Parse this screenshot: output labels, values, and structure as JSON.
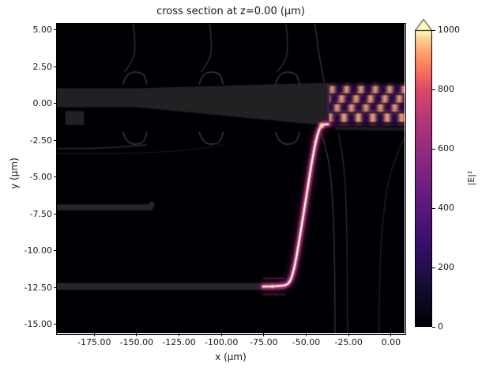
{
  "chart_data": {
    "type": "heatmap",
    "title": "cross section at z=0.00 (μm)",
    "xlabel": "x (μm)",
    "ylabel": "y (μm)",
    "bg_color": "#000004",
    "xlim": [
      -197,
      8
    ],
    "ylim": [
      -15.6,
      5.43
    ],
    "grid": false,
    "x_ticks": {
      "values": [
        -175,
        -150,
        -125,
        -100,
        -75,
        -50,
        -25,
        0
      ],
      "labels": [
        "-175.00",
        "-150.00",
        "-125.00",
        "-100.00",
        "-75.00",
        "-50.00",
        "-25.00",
        "0.00"
      ]
    },
    "y_ticks": {
      "values": [
        5,
        2.5,
        0,
        -2.5,
        -5,
        -7.5,
        -10,
        -12.5,
        -15
      ],
      "labels": [
        "5.00",
        "2.50",
        "0.00",
        "-2.50",
        "-5.00",
        "-7.50",
        "-10.00",
        "-12.50",
        "-15.00"
      ]
    },
    "colorbar": {
      "label": "|E|²",
      "vmin": 0,
      "vmax": 1000,
      "ticks": [
        0,
        200,
        400,
        600,
        800,
        1000
      ],
      "tick_labels": [
        "0",
        "200",
        "400",
        "600",
        "800",
        "1000"
      ],
      "extend": "max",
      "colormap": "magma",
      "stops": [
        {
          "t": 0.0,
          "c": "#000004"
        },
        {
          "t": 0.14,
          "c": "#140e36"
        },
        {
          "t": 0.29,
          "c": "#3b0f70"
        },
        {
          "t": 0.43,
          "c": "#641a80"
        },
        {
          "t": 0.57,
          "c": "#8c2981"
        },
        {
          "t": 0.71,
          "c": "#b73779"
        },
        {
          "t": 0.8,
          "c": "#de4968"
        },
        {
          "t": 0.86,
          "c": "#f7705c"
        },
        {
          "t": 0.92,
          "c": "#fe9f6d"
        },
        {
          "t": 0.97,
          "c": "#fecf92"
        },
        {
          "t": 1.0,
          "c": "#fcfdbf"
        }
      ]
    },
    "geometry_overlay": {
      "shapes": [
        {
          "kind": "polygon",
          "fill": "rgba(255,255,255,0.13)",
          "pts": [
            [
              -197,
              1.05
            ],
            [
              -150,
              1.05
            ],
            [
              -46,
              1.4
            ],
            [
              -36,
              1.4
            ],
            [
              -36,
              -1.4
            ],
            [
              -46,
              -1.4
            ],
            [
              -150,
              -0.25
            ],
            [
              -197,
              -0.25
            ]
          ]
        },
        {
          "kind": "polygon",
          "fill": "rgba(255,255,255,0.13)",
          "pts": [
            [
              -192,
              -0.5
            ],
            [
              -181,
              -0.5
            ],
            [
              -181,
              -1.45
            ],
            [
              -192,
              -1.45
            ]
          ]
        },
        {
          "kind": "polygon",
          "fill": "rgba(255,255,255,0.15)",
          "pts": [
            [
              -197,
              -6.85
            ],
            [
              -143,
              -6.85
            ],
            [
              -141,
              -6.6
            ],
            [
              -139,
              -6.85
            ],
            [
              -141,
              -7.25
            ],
            [
              -197,
              -7.25
            ]
          ]
        },
        {
          "kind": "polygon",
          "fill": "rgba(255,255,255,0.15)",
          "pts": [
            [
              -197,
              -12.18
            ],
            [
              -62,
              -12.18
            ],
            [
              -62,
              -12.65
            ],
            [
              -197,
              -12.65
            ]
          ]
        },
        {
          "kind": "polygon",
          "fill": "rgba(255,255,255,0.10)",
          "pts": [
            [
              -33,
              -1.55
            ],
            [
              8,
              -1.6
            ],
            [
              8,
              -1.85
            ],
            [
              -33,
              -1.8
            ]
          ]
        },
        {
          "kind": "path",
          "stroke": "rgba(255,255,255,0.22)",
          "w": 1.6,
          "pts": [
            [
              -158,
              1.35
            ],
            [
              -156,
              2.15
            ],
            [
              -146,
              2.15
            ],
            [
              -144,
              1.35
            ]
          ]
        },
        {
          "kind": "path",
          "stroke": "rgba(255,255,255,0.22)",
          "w": 1.6,
          "pts": [
            [
              -113,
              1.35
            ],
            [
              -111,
              2.15
            ],
            [
              -101,
              2.15
            ],
            [
              -99,
              1.35
            ]
          ]
        },
        {
          "kind": "path",
          "stroke": "rgba(255,255,255,0.22)",
          "w": 1.6,
          "pts": [
            [
              -68,
              1.35
            ],
            [
              -66,
              2.15
            ],
            [
              -56,
              2.15
            ],
            [
              -54,
              1.35
            ]
          ]
        },
        {
          "kind": "path",
          "stroke": "rgba(255,255,255,0.22)",
          "w": 1.6,
          "pts": [
            [
              -158,
              -1.95
            ],
            [
              -156,
              -2.75
            ],
            [
              -146,
              -2.75
            ],
            [
              -144,
              -1.95
            ]
          ]
        },
        {
          "kind": "path",
          "stroke": "rgba(255,255,255,0.22)",
          "w": 1.6,
          "pts": [
            [
              -113,
              -1.95
            ],
            [
              -111,
              -2.75
            ],
            [
              -101,
              -2.75
            ],
            [
              -99,
              -1.95
            ]
          ]
        },
        {
          "kind": "path",
          "stroke": "rgba(255,255,255,0.22)",
          "w": 1.6,
          "pts": [
            [
              -68,
              -1.95
            ],
            [
              -66,
              -2.75
            ],
            [
              -56,
              -2.75
            ],
            [
              -54,
              -1.95
            ]
          ]
        },
        {
          "kind": "path",
          "stroke": "rgba(255,255,255,0.20)",
          "w": 1.4,
          "pts": [
            [
              -152,
              5.5
            ],
            [
              -150,
              3.6
            ],
            [
              -154,
              2.6
            ],
            [
              -157,
              2.2
            ]
          ]
        },
        {
          "kind": "path",
          "stroke": "rgba(255,255,255,0.20)",
          "w": 1.4,
          "pts": [
            [
              -107,
              5.5
            ],
            [
              -105,
              3.6
            ],
            [
              -109,
              2.6
            ],
            [
              -112,
              2.2
            ]
          ]
        },
        {
          "kind": "path",
          "stroke": "rgba(255,255,255,0.20)",
          "w": 1.4,
          "pts": [
            [
              -62,
              5.5
            ],
            [
              -60,
              3.6
            ],
            [
              -64,
              2.6
            ],
            [
              -67,
              2.2
            ]
          ]
        },
        {
          "kind": "path",
          "stroke": "rgba(255,255,255,0.20)",
          "w": 1.4,
          "pts": [
            [
              -45,
              5.5
            ],
            [
              -43,
              3.8
            ],
            [
              -41,
              2.4
            ],
            [
              -39.5,
              1.5
            ]
          ]
        },
        {
          "kind": "path",
          "stroke": "rgba(255,255,255,0.18)",
          "w": 1.4,
          "pts": [
            [
              -144,
              -2.8
            ],
            [
              -168,
              -3.05
            ],
            [
              -197,
              -3.05
            ]
          ]
        },
        {
          "kind": "path",
          "stroke": "rgba(255,255,255,0.10)",
          "w": 1.2,
          "pts": [
            [
              -99,
              -2.8
            ],
            [
              -125,
              -3.35
            ],
            [
              -197,
              -3.4
            ]
          ]
        },
        {
          "kind": "path",
          "stroke": "rgba(255,255,255,0.20)",
          "w": 1.4,
          "pts": [
            [
              -41,
              -2.0
            ],
            [
              -36.5,
              -3.6
            ],
            [
              -34,
              -7
            ],
            [
              -33.2,
              -11
            ],
            [
              -33,
              -15.7
            ]
          ]
        },
        {
          "kind": "path",
          "stroke": "rgba(255,255,255,0.16)",
          "w": 1.4,
          "pts": [
            [
              -31,
              -2.0
            ],
            [
              -28,
              -3.6
            ],
            [
              -26.3,
              -7
            ],
            [
              -25.8,
              -11
            ],
            [
              -25.6,
              -15.7
            ]
          ]
        },
        {
          "kind": "path",
          "stroke": "rgba(255,255,255,0.12)",
          "w": 1.4,
          "pts": [
            [
              8,
              -2.3
            ],
            [
              -1,
              -4.4
            ],
            [
              -5.5,
              -8.5
            ],
            [
              -6.8,
              -12
            ],
            [
              -7,
              -15.7
            ]
          ]
        }
      ]
    },
    "field": {
      "beam": {
        "pts": [
          [
            -75.5,
            -12.42
          ],
          [
            -63,
            -12.42
          ],
          [
            -59.5,
            -12.15
          ],
          [
            -57,
            -11.2
          ],
          [
            -54.5,
            -9.6
          ],
          [
            -52,
            -7.8
          ],
          [
            -49.5,
            -6.0
          ],
          [
            -47,
            -4.2
          ],
          [
            -45,
            -2.9
          ],
          [
            -43,
            -1.95
          ],
          [
            -41.3,
            -1.5
          ],
          [
            -39.5,
            -1.4
          ],
          [
            -37,
            -1.4
          ]
        ],
        "glow": "#8c2981",
        "mid": "#de4968",
        "core": "#ffffff",
        "fringe": "#b73779",
        "fringe_offsets": [
          0.55,
          -0.55
        ],
        "fringe_span": [
          -75.5,
          -62.5
        ],
        "fringe_y": -12.42,
        "hotspots": [
          {
            "x": -40.8,
            "y": -1.48,
            "r": 5.0
          },
          {
            "x": -70.0,
            "y": -12.42,
            "r": 3.4
          },
          {
            "x": -44.5,
            "y": -2.6,
            "r": 3.0
          }
        ]
      },
      "stripes": {
        "x0": -36.5,
        "x1": 8,
        "period": 8.5,
        "underglow": "rgba(100,30,120,0.30)",
        "y_top": 1.35,
        "y_bottom": -1.55,
        "rows": [
          {
            "y": 0.95,
            "h": 0.5,
            "phase": 0.5,
            "amp": 0.75
          },
          {
            "y": 0.32,
            "h": 0.5,
            "phase": 2.6,
            "amp": 0.8
          },
          {
            "y": -0.3,
            "h": 0.5,
            "phase": 4.6,
            "amp": 0.8
          },
          {
            "y": -0.95,
            "h": 0.55,
            "phase": 1.6,
            "amp": 0.85
          }
        ],
        "lo": [
          59,
          15,
          112
        ],
        "hi": [
          254,
          176,
          120
        ]
      }
    }
  }
}
